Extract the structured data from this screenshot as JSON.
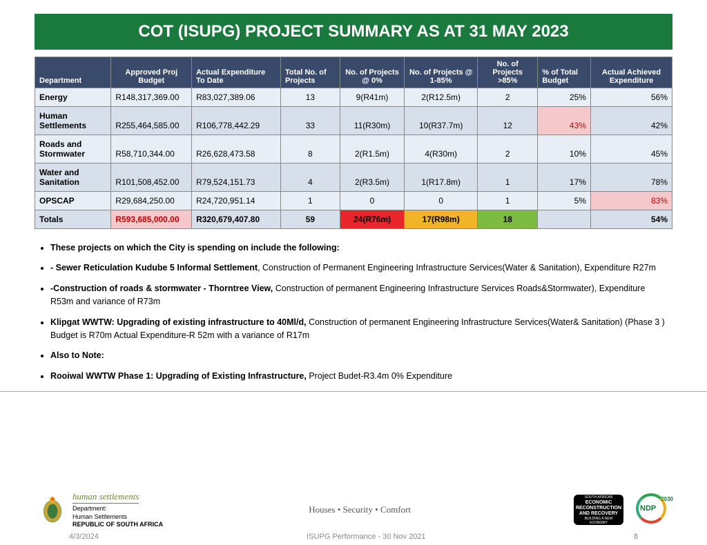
{
  "title": "COT (ISUPG) PROJECT SUMMARY AS AT 31 MAY 2023",
  "table": {
    "columns": [
      "Department",
      "Approved Proj Budget",
      "Actual Expenditure To Date",
      "Total No. of Projects",
      "No. of Projects @ 0%",
      "No. of Projects @ 1-85%",
      "No. of Projects >85%",
      "% of Total Budget",
      "Actual Achieved Expenditure"
    ],
    "rows": [
      {
        "dept": "Energy",
        "budget": "R148,317,369.00",
        "actual": "R83,027,389.06",
        "total": "13",
        "p0": "9(R41m)",
        "p1": "2(R12.5m)",
        "p85": "2",
        "pct": "25%",
        "ach": "56%",
        "pct_hl": "",
        "ach_hl": ""
      },
      {
        "dept": "Human Settlements",
        "budget": "R255,464,585.00",
        "actual": "R106,778,442.29",
        "total": "33",
        "p0": "11(R30m)",
        "p1": "10(R37.7m)",
        "p85": "12",
        "pct": "43%",
        "ach": "42%",
        "pct_hl": "pink",
        "ach_hl": ""
      },
      {
        "dept": "Roads and Stormwater",
        "budget": "R58,710,344.00",
        "actual": "R26,628,473.58",
        "total": "8",
        "p0": "2(R1.5m)",
        "p1": "4(R30m)",
        "p85": "2",
        "pct": "10%",
        "ach": "45%",
        "pct_hl": "",
        "ach_hl": ""
      },
      {
        "dept": "Water and Sanitation",
        "budget": "R101,508,452.00",
        "actual": "R79,524,151.73",
        "total": "4",
        "p0": "2(R3.5m)",
        "p1": "1(R17.8m)",
        "p85": "1",
        "pct": "17%",
        "ach": "78%",
        "pct_hl": "",
        "ach_hl": ""
      },
      {
        "dept": "OPSCAP",
        "budget": "R29,684,250.00",
        "actual": "R24,720,951.14",
        "total": "1",
        "p0": "0",
        "p1": "0",
        "p85": "1",
        "pct": "5%",
        "ach": "83%",
        "pct_hl": "",
        "ach_hl": "pink"
      }
    ],
    "totals": {
      "dept": "Totals",
      "budget": "R593,685,000.00",
      "actual": "R320,679,407.80",
      "total": "59",
      "p0": "24(R76m)",
      "p1": "17(R98m)",
      "p85": "18",
      "pct": "",
      "ach": "54%"
    },
    "header_bg": "#3a4a6b",
    "row_odd_bg": "#e8eef5",
    "row_even_bg": "#d6dfea",
    "highlight_colors": {
      "pink": "#f5c9cc",
      "red": "#e8252b",
      "yellow": "#f0b428",
      "green": "#7dbb42"
    }
  },
  "bullets": {
    "intro": "These projects on which the City is spending on include the following:",
    "b1_bold": "- Sewer Reticulation Kudube 5 Informal Settlement",
    "b1_rest": ", Construction of Permanent Engineering Infrastructure Services(Water & Sanitation), Expenditure R27m",
    "b2_bold": "-Construction of roads & stormwater - Thorntree View,",
    "b2_rest": " Construction of permanent Engineering Infrastructure Services Roads&Stormwater), Expenditure R53m and variance of R73m",
    "b3_bold": "Klipgat WWTW: Upgrading of existing infrastructure to 40Ml/d,",
    "b3_rest": " Construction of permanent Engineering Infrastructure Services(Water& Sanitation) (Phase 3 ) Budget is R70m Actual Expenditure-R 52m with a variance of R17m",
    "b4": "Also to Note:",
    "b5_bold": "  Rooiwal WWTW Phase 1: Upgrading of  Existing Infrastructure,",
    "b5_rest": " Project Budet-R3.4m 0% Expenditure"
  },
  "footer": {
    "dept_brand": "human settlements",
    "dept_line1": "Department:",
    "dept_line2": "Human Settlements",
    "dept_line3": "REPUBLIC OF SOUTH AFRICA",
    "tagline": "Houses • Security • Comfort",
    "erp_top": "SOUTH AFRICAN",
    "erp_l1": "ECONOMIC",
    "erp_l2": "RECONSTRUCTION",
    "erp_l3": "AND RECOVERY",
    "erp_sub": "BUILDING A NEW ECONOMY",
    "ndp": "NDP",
    "ndp_year": "2030",
    "date": "4/3/2024",
    "center": "ISUPG Performance - 30 Nov 2021",
    "page": "8"
  },
  "colors": {
    "title_bg": "#1a7a3d",
    "title_fg": "#ffffff"
  }
}
